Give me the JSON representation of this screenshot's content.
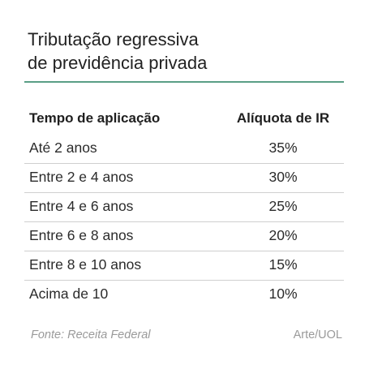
{
  "chart": {
    "title_line1": "Tributação regressiva",
    "title_line2": "de previdência privada",
    "source": "Fonte: Receita Federal",
    "credit": "Arte/UOL",
    "accent_color": "#5a9e86"
  },
  "chart_data": {
    "type": "table",
    "title": "Tributação regressiva de previdência privada",
    "columns": [
      "Tempo de aplicação",
      "Alíquota de IR"
    ],
    "rows": [
      [
        "Até 2 anos",
        "35%"
      ],
      [
        "Entre 2 e 4 anos",
        "30%"
      ],
      [
        "Entre 4 e 6 anos",
        "25%"
      ],
      [
        "Entre 6 e 8 anos",
        "20%"
      ],
      [
        "Entre 8 e 10 anos",
        "15%"
      ],
      [
        "Acima de 10",
        "10%"
      ]
    ]
  }
}
